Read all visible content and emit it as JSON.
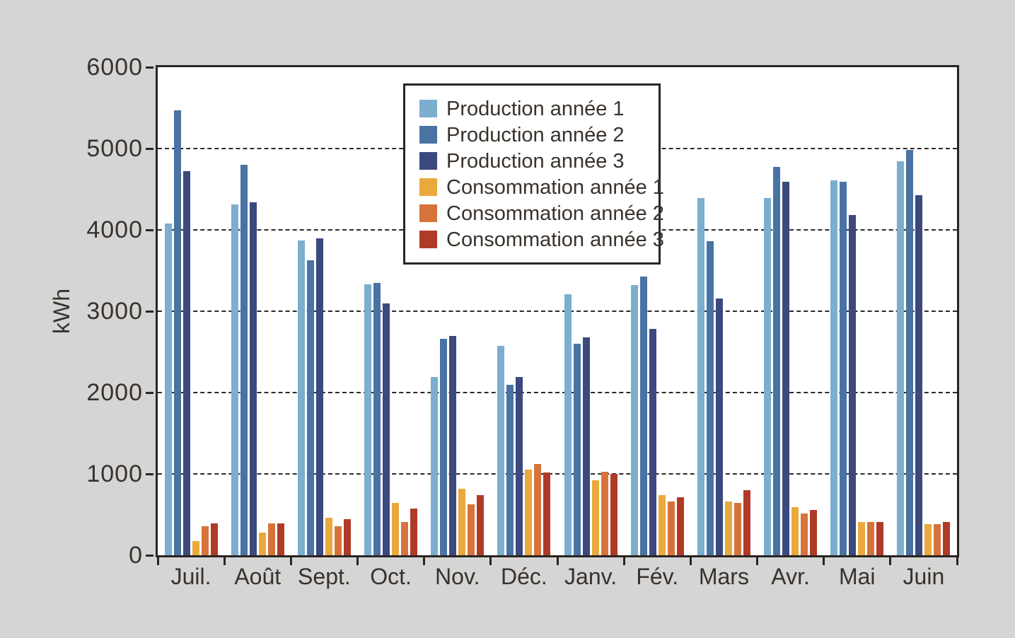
{
  "chart_data": {
    "type": "bar",
    "title": "",
    "xlabel": "",
    "ylabel": "kWh",
    "ylim": [
      0,
      6000
    ],
    "yticks": [
      0,
      1000,
      2000,
      3000,
      4000,
      5000,
      6000
    ],
    "grid": "horizontal dashed lines at 1000-5000",
    "legend_position": "top-center inside plot, framed box",
    "categories": [
      "Juil.",
      "Août",
      "Sept.",
      "Oct.",
      "Nov.",
      "Déc.",
      "Janv.",
      "Fév.",
      "Mars",
      "Avr.",
      "Mai",
      "Juin"
    ],
    "series": [
      {
        "name": "Production année 1",
        "color": "#7BAECF",
        "values": [
          4080,
          4310,
          3870,
          3330,
          2190,
          2570,
          3210,
          3320,
          4390,
          4390,
          4610,
          4840
        ]
      },
      {
        "name": "Production année 2",
        "color": "#4973A3",
        "values": [
          5470,
          4800,
          3630,
          3350,
          2660,
          2100,
          2600,
          3430,
          3860,
          4770,
          4590,
          4980
        ]
      },
      {
        "name": "Production année 3",
        "color": "#3B497E",
        "values": [
          4720,
          4340,
          3900,
          3100,
          2700,
          2190,
          2680,
          2780,
          3160,
          4590,
          4180,
          4430
        ]
      },
      {
        "name": "Consommation année 1",
        "color": "#E9A93C",
        "values": [
          170,
          280,
          460,
          640,
          820,
          1050,
          920,
          740,
          660,
          590,
          410,
          380
        ]
      },
      {
        "name": "Consommation année 2",
        "color": "#D6733A",
        "values": [
          360,
          390,
          360,
          410,
          630,
          1120,
          1030,
          660,
          640,
          510,
          410,
          380
        ]
      },
      {
        "name": "Consommation année 3",
        "color": "#B03A28",
        "values": [
          390,
          390,
          440,
          570,
          740,
          1020,
          1000,
          710,
          800,
          560,
          410,
          410
        ]
      }
    ]
  },
  "style": {
    "background": "#D5D5D5",
    "plot_background": "#FFFFFF",
    "frame_color": "#2A2522",
    "text_color": "#39322C"
  }
}
